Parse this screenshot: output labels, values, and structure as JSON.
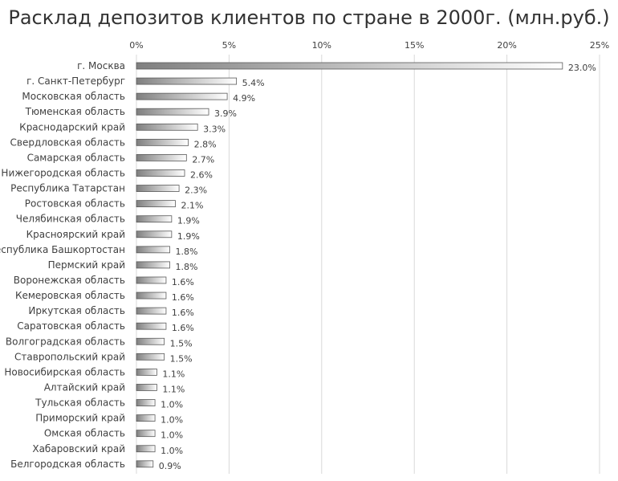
{
  "chart_data": {
    "type": "bar",
    "orientation": "horizontal",
    "title": "Расклад депозитов клиентов по стране в 2000г. (млн.руб.)",
    "xlabel": "",
    "ylabel": "",
    "xlim": [
      0,
      25
    ],
    "x_ticks": [
      "0%",
      "5%",
      "10%",
      "15%",
      "20%",
      "25%"
    ],
    "x_tick_values": [
      0,
      5,
      10,
      15,
      20,
      25
    ],
    "axis_position": "top",
    "grid": true,
    "legend": "none",
    "bar_style": "gradient gray to white",
    "colors": {
      "bar_dark": "#7f7f7f",
      "bar_light": "#ffffff",
      "bar_border": "#595959",
      "grid": "#d9d9d9",
      "text": "#404040"
    },
    "categories": [
      "г. Москва",
      "г. Санкт-Петербург",
      "Московская область",
      "Тюменская область",
      "Краснодарский край",
      "Свердловская область",
      "Самарская область",
      "Нижегородская область",
      "Республика Татарстан",
      "Ростовская область",
      "Челябинская область",
      "Красноярский край",
      "Республика Башкортостан",
      "Пермский край",
      "Воронежская область",
      "Кемеровская область",
      "Иркутская область",
      "Саратовская область",
      "Волгоградская область",
      "Ставропольский край",
      "Новосибирская область",
      "Алтайский край",
      "Тульская область",
      "Приморский край",
      "Омская область",
      "Хабаровский край",
      "Белгородская область"
    ],
    "values": [
      23.0,
      5.4,
      4.9,
      3.9,
      3.3,
      2.8,
      2.7,
      2.6,
      2.3,
      2.1,
      1.9,
      1.9,
      1.8,
      1.8,
      1.6,
      1.6,
      1.6,
      1.6,
      1.5,
      1.5,
      1.1,
      1.1,
      1.0,
      1.0,
      1.0,
      1.0,
      0.9
    ],
    "data_labels": [
      "23.0%",
      "5.4%",
      "4.9%",
      "3.9%",
      "3.3%",
      "2.8%",
      "2.7%",
      "2.6%",
      "2.3%",
      "2.1%",
      "1.9%",
      "1.9%",
      "1.8%",
      "1.8%",
      "1.6%",
      "1.6%",
      "1.6%",
      "1.6%",
      "1.5%",
      "1.5%",
      "1.1%",
      "1.1%",
      "1.0%",
      "1.0%",
      "1.0%",
      "1.0%",
      "0.9%"
    ]
  }
}
